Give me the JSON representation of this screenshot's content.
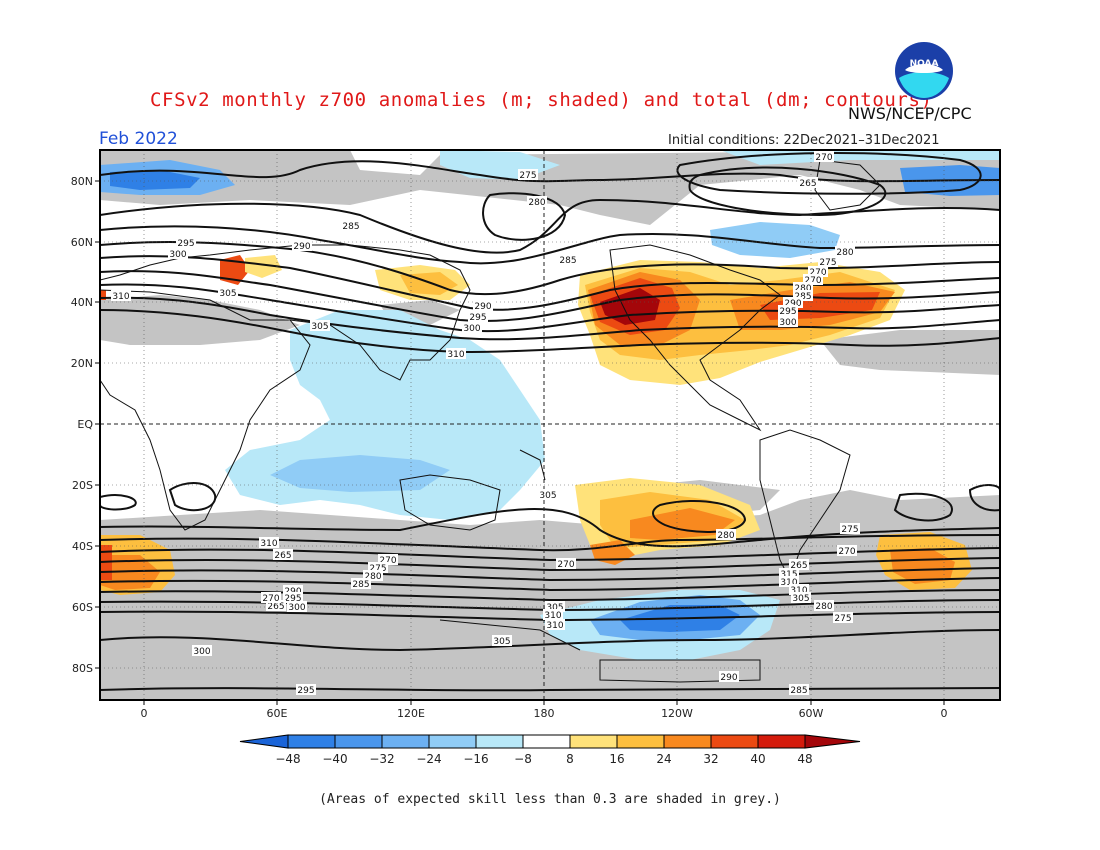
{
  "header": {
    "title": "CFSv2 monthly z700 anomalies (m; shaded) and total (dm; contours)",
    "org": "NWS/NCEP/CPC",
    "month": "Feb 2022",
    "initial_conditions": "Initial conditions: 22Dec2021–31Dec2021",
    "logo_text": "NOAA"
  },
  "map": {
    "lat_labels": [
      "80N",
      "60N",
      "40N",
      "20N",
      "EQ",
      "20S",
      "40S",
      "60S",
      "80S"
    ],
    "lon_labels": [
      "0",
      "60E",
      "120E",
      "180",
      "120W",
      "60W",
      "0"
    ],
    "contour_labels": [
      "270",
      "275",
      "265",
      "280",
      "285",
      "290",
      "295",
      "300",
      "305",
      "310",
      "310",
      "305",
      "300",
      "295",
      "290",
      "285",
      "280",
      "275",
      "270",
      "270",
      "280",
      "285",
      "290",
      "295",
      "300",
      "305",
      "310",
      "265",
      "270",
      "275",
      "280",
      "285",
      "290",
      "295",
      "300",
      "305",
      "310",
      "310",
      "305",
      "300",
      "295",
      "290",
      "285",
      "280",
      "275",
      "270",
      "265",
      "315",
      "310",
      "310",
      "305",
      "280",
      "275",
      "270",
      "265",
      "270",
      "265",
      "265",
      "270",
      "310"
    ]
  },
  "colorbar": {
    "labels": [
      "-48",
      "-40",
      "-32",
      "-24",
      "-16",
      "-8",
      "8",
      "16",
      "24",
      "32",
      "40",
      "48"
    ],
    "colors": [
      "#1a64d8",
      "#2f80e6",
      "#4a96ec",
      "#6cb0f2",
      "#90ccf6",
      "#b8e8f8",
      "#ffffff",
      "#ffe27a",
      "#fdbf3f",
      "#f8891f",
      "#ec4a12",
      "#d41b0c",
      "#a4060a"
    ]
  },
  "footnote": "(Areas of expected skill less than 0.3 are shaded in grey.)"
}
